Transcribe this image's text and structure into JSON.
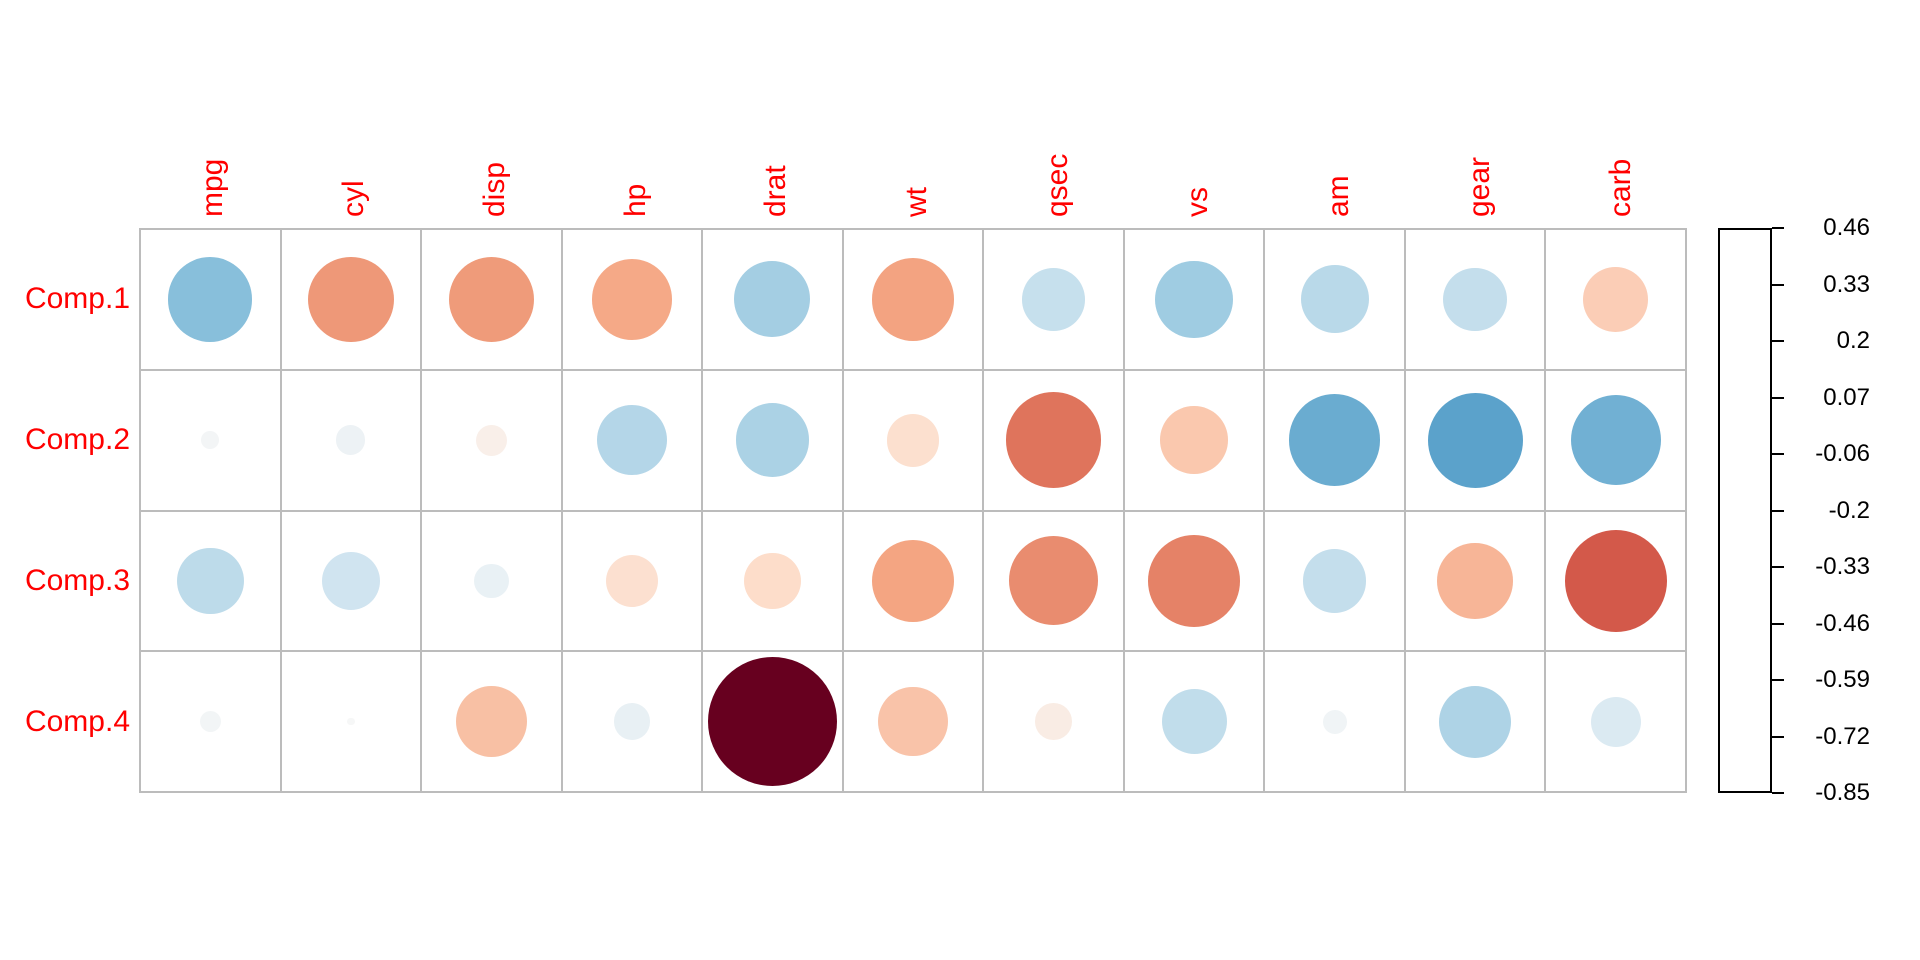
{
  "chart_data": {
    "type": "heatmap",
    "subtype": "correlation-circle-matrix",
    "title": "",
    "columns": [
      "mpg",
      "cyl",
      "disp",
      "hp",
      "drat",
      "wt",
      "qsec",
      "vs",
      "am",
      "gear",
      "carb"
    ],
    "rows": [
      "Comp.1",
      "Comp.2",
      "Comp.3",
      "Comp.4"
    ],
    "series": [
      {
        "name": "Comp.1",
        "values": [
          0.363,
          -0.374,
          -0.368,
          -0.33,
          0.294,
          -0.346,
          0.2,
          0.307,
          0.235,
          0.207,
          -0.214
        ]
      },
      {
        "name": "Comp.2",
        "values": [
          0.016,
          0.044,
          -0.049,
          0.249,
          0.275,
          -0.143,
          -0.463,
          -0.232,
          0.429,
          0.462,
          0.414
        ]
      },
      {
        "name": "Comp.3",
        "values": [
          0.226,
          0.175,
          0.061,
          -0.14,
          -0.161,
          -0.342,
          -0.403,
          -0.429,
          0.206,
          -0.29,
          -0.529
        ]
      },
      {
        "name": "Comp.4",
        "values": [
          0.023,
          0.003,
          -0.257,
          0.068,
          -0.855,
          -0.246,
          -0.068,
          0.215,
          0.03,
          0.265,
          0.127
        ]
      }
    ],
    "legend": {
      "position": "right",
      "tick_labels": [
        "0.46",
        "0.33",
        "0.2",
        "0.07",
        "-0.06",
        "-0.2",
        "-0.33",
        "-0.46",
        "-0.59",
        "-0.72",
        "-0.85"
      ],
      "top_value": 0.462,
      "bottom_value": -0.855
    },
    "color_domain": [
      -0.855,
      0.855
    ],
    "max_abs": 0.855,
    "palette": [
      "#67001F",
      "#B2182B",
      "#D6604D",
      "#F4A582",
      "#FDDBC7",
      "#F7F7F7",
      "#D1E5F0",
      "#92C5DE",
      "#4393C3",
      "#2166AC",
      "#053061"
    ],
    "colors": {
      "axis_label": "#FF0000",
      "grid_line": "#BCBCBC",
      "legend_text": "#000000",
      "legend_border": "#000000",
      "background": "#FFFFFF"
    },
    "layout_hints": {
      "grid": "on",
      "circle_area_proportional_to_abs_value": true
    }
  }
}
